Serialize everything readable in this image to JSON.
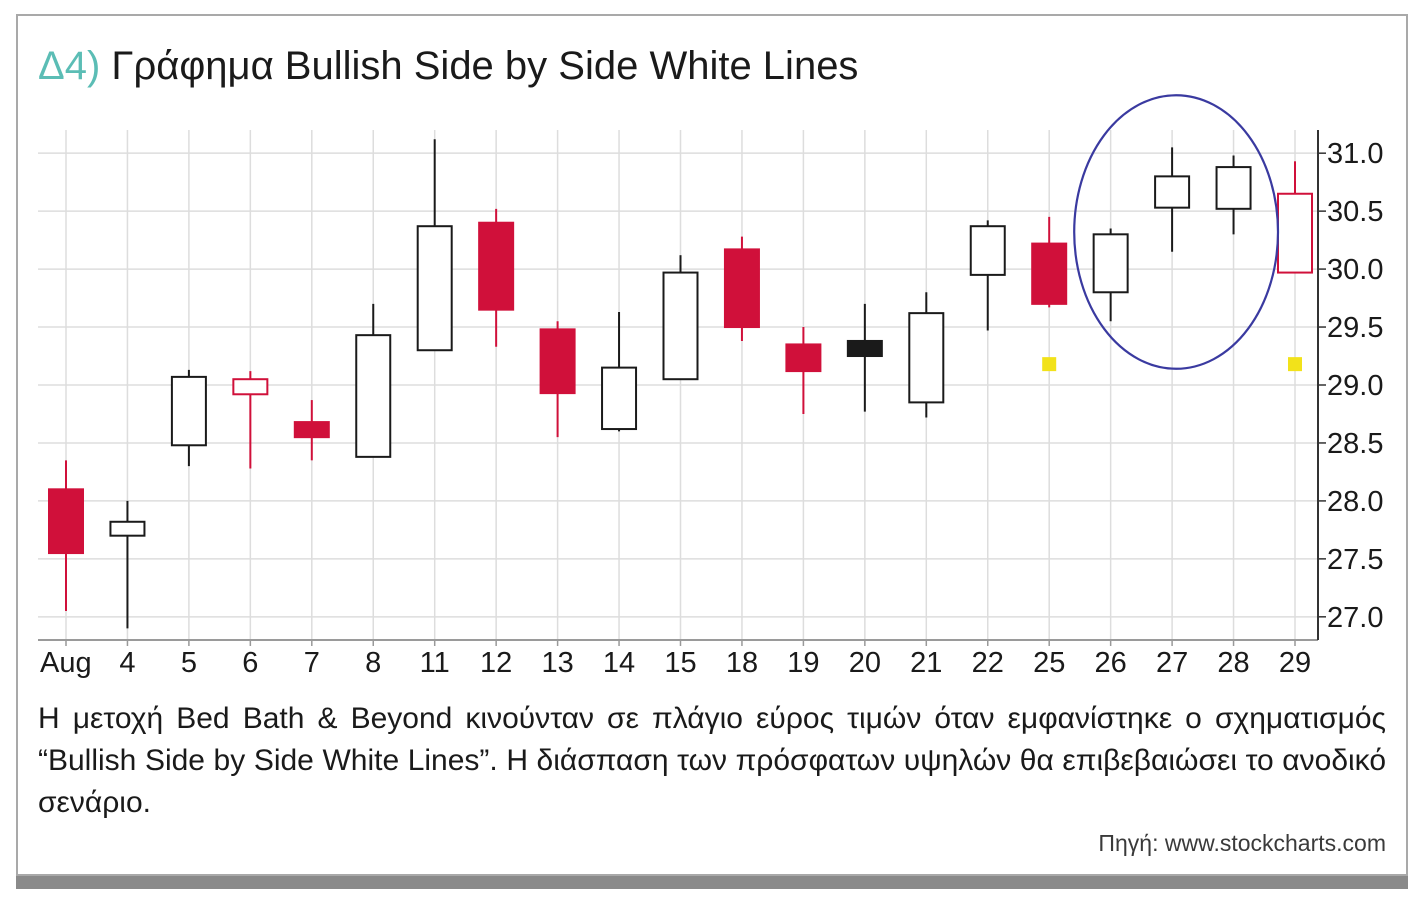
{
  "title": {
    "number": "Δ4)",
    "text": "Γράφημα Bullish Side by Side White Lines"
  },
  "caption": "Η μετοχή Bed Bath & Beyond κινούνταν σε πλάγιο εύρος τιμών όταν εμφανίστηκε ο σχηματισμός “Bullish Side by Side White Lines”. Η διάσπαση των πρόσφατων υψηλών θα επιβεβαιώσει το ανοδικό σενάριο.",
  "source": "Πηγή: www.stockcharts.com",
  "colors": {
    "bear": "#d0103a",
    "bull": "#ffffff",
    "outline": "#1a1a1a",
    "circle": "#3a3aa0",
    "marker": "#f2e21a",
    "accent": "#5bbdb5",
    "grid": "#dddddd"
  },
  "chart_data": {
    "type": "candlestick",
    "title": "Γράφημα Bullish Side by Side White Lines",
    "xlabel": "",
    "ylabel": "",
    "ylim": [
      26.8,
      31.2
    ],
    "y_ticks": [
      27.0,
      27.5,
      28.0,
      28.5,
      29.0,
      29.5,
      30.0,
      30.5,
      31.0
    ],
    "y_tick_labels": [
      "27.0",
      "27.5",
      "28.0",
      "28.5",
      "29.0",
      "29.5",
      "30.0",
      "30.5",
      "31.0"
    ],
    "categories": [
      "Aug",
      "4",
      "5",
      "6",
      "7",
      "8",
      "11",
      "12",
      "13",
      "14",
      "15",
      "18",
      "19",
      "20",
      "21",
      "22",
      "25",
      "26",
      "27",
      "28",
      "29"
    ],
    "candles": [
      {
        "x": "Aug",
        "open": 28.1,
        "high": 28.35,
        "low": 27.05,
        "close": 27.55,
        "style": "bear"
      },
      {
        "x": "4",
        "open": 27.7,
        "high": 28.0,
        "low": 26.9,
        "close": 27.82,
        "style": "bull"
      },
      {
        "x": "5",
        "open": 28.48,
        "high": 29.13,
        "low": 28.3,
        "close": 29.07,
        "style": "bull"
      },
      {
        "x": "6",
        "open": 28.92,
        "high": 29.12,
        "low": 28.28,
        "close": 29.05,
        "style": "bull-red"
      },
      {
        "x": "7",
        "open": 28.68,
        "high": 28.87,
        "low": 28.35,
        "close": 28.55,
        "style": "bear"
      },
      {
        "x": "8",
        "open": 28.38,
        "high": 29.7,
        "low": 28.38,
        "close": 29.43,
        "style": "bull"
      },
      {
        "x": "11",
        "open": 29.3,
        "high": 31.12,
        "low": 29.3,
        "close": 30.37,
        "style": "bull"
      },
      {
        "x": "12",
        "open": 30.4,
        "high": 30.52,
        "low": 29.33,
        "close": 29.65,
        "style": "bear"
      },
      {
        "x": "13",
        "open": 29.48,
        "high": 29.55,
        "low": 28.55,
        "close": 28.93,
        "style": "bear"
      },
      {
        "x": "14",
        "open": 28.62,
        "high": 29.63,
        "low": 28.6,
        "close": 29.15,
        "style": "bull"
      },
      {
        "x": "15",
        "open": 29.05,
        "high": 30.12,
        "low": 29.05,
        "close": 29.97,
        "style": "bull"
      },
      {
        "x": "18",
        "open": 30.17,
        "high": 30.28,
        "low": 29.38,
        "close": 29.5,
        "style": "bear"
      },
      {
        "x": "19",
        "open": 29.35,
        "high": 29.5,
        "low": 28.75,
        "close": 29.12,
        "style": "bear"
      },
      {
        "x": "20",
        "open": 29.38,
        "high": 29.7,
        "low": 28.77,
        "close": 29.25,
        "style": "black"
      },
      {
        "x": "21",
        "open": 28.85,
        "high": 29.8,
        "low": 28.72,
        "close": 29.62,
        "style": "bull"
      },
      {
        "x": "22",
        "open": 29.95,
        "high": 30.42,
        "low": 29.47,
        "close": 30.37,
        "style": "bull"
      },
      {
        "x": "25",
        "open": 30.22,
        "high": 30.45,
        "low": 29.67,
        "close": 29.7,
        "style": "bear"
      },
      {
        "x": "26",
        "open": 29.8,
        "high": 30.35,
        "low": 29.55,
        "close": 30.3,
        "style": "bull"
      },
      {
        "x": "27",
        "open": 30.53,
        "high": 31.05,
        "low": 30.15,
        "close": 30.8,
        "style": "bull"
      },
      {
        "x": "28",
        "open": 30.52,
        "high": 30.98,
        "low": 30.3,
        "close": 30.88,
        "style": "bull"
      },
      {
        "x": "29",
        "open": 29.97,
        "high": 30.93,
        "low": 29.97,
        "close": 30.65,
        "style": "bull-red"
      }
    ],
    "markers": [
      {
        "x": "25",
        "y": 29.18
      },
      {
        "x": "29",
        "y": 29.18
      }
    ],
    "highlight_circle": {
      "x_from": "25",
      "x_to": "29",
      "y_center": 30.32,
      "y_radius": 1.18
    },
    "grid": true,
    "legend": "none"
  }
}
